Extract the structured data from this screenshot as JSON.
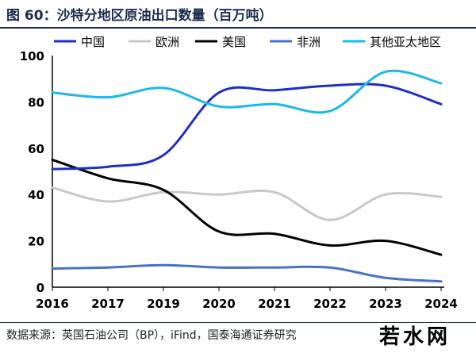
{
  "header": {
    "title": "图 60：沙特分地区原油出口数量（百万吨）"
  },
  "footer": {
    "source": "数据来源：英国石油公司（BP），iFind，国泰海通证券研究",
    "watermark": "若水网"
  },
  "chart_data": {
    "type": "line",
    "title": "",
    "xlabel": "",
    "ylabel": "",
    "ylim": [
      0,
      100
    ],
    "yticks": [
      0,
      20,
      40,
      60,
      80,
      100
    ],
    "x": [
      "2016",
      "2017",
      "2019",
      "2020",
      "2021",
      "2022",
      "2023",
      "2024"
    ],
    "grid": false,
    "legend": "top",
    "series": [
      {
        "name": "中国",
        "color": "#1f2fc4",
        "values": [
          51,
          52,
          57,
          84,
          85,
          87,
          87,
          79
        ]
      },
      {
        "name": "欧洲",
        "color": "#c8c8c8",
        "values": [
          43,
          37,
          41,
          40,
          41,
          29,
          40,
          39
        ]
      },
      {
        "name": "美国",
        "color": "#000000",
        "values": [
          55,
          47,
          42,
          24,
          23,
          18,
          20,
          14
        ]
      },
      {
        "name": "非洲",
        "color": "#4a72c4",
        "values": [
          8,
          8.5,
          9.5,
          8.5,
          8.5,
          8.5,
          4,
          2.5
        ]
      },
      {
        "name": "其他亚太地区",
        "color": "#1cb8e8",
        "values": [
          84,
          82,
          86,
          78,
          79,
          76,
          93,
          88
        ]
      }
    ]
  }
}
